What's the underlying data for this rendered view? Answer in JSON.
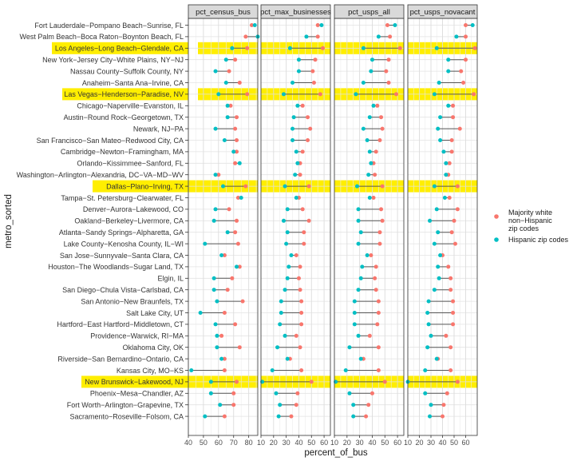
{
  "chart_data": {
    "type": "dumbbell",
    "xlabel": "percent_of_bus",
    "ylabel": "metro_sorted",
    "legend": {
      "placement": "right",
      "title": "",
      "items": [
        {
          "label": "Majority white non−Hispanic zip codes",
          "color": "#F8766D"
        },
        {
          "label": "Hispanic zip codes",
          "color": "#00BFC4"
        }
      ]
    },
    "highlight_color": "#FFEE00",
    "highlighted_metros": [
      "Los Angeles−Long Beach−Glendale, CA",
      "Las Vegas−Henderson−Paradise, NV",
      "Dallas−Plano−Irving, TX",
      "New Brunswick−Lakewood, NJ"
    ],
    "metros": [
      "Fort Lauderdale−Pompano Beach−Sunrise, FL",
      "West Palm Beach−Boca Raton−Boynton Beach, FL",
      "Los Angeles−Long Beach−Glendale, CA",
      "New York−Jersey City−White Plains, NY−NJ",
      "Nassau County−Suffolk County, NY",
      "Anaheim−Santa Ana−Irvine, CA",
      "Las Vegas−Henderson−Paradise, NV",
      "Chicago−Naperville−Evanston, IL",
      "Austin−Round Rock−Georgetown, TX",
      "Newark, NJ−PA",
      "San Francisco−San Mateo−Redwood City, CA",
      "Cambridge−Newton−Framingham, MA",
      "Orlando−Kissimmee−Sanford, FL",
      "Washington−Arlington−Alexandria, DC−VA−MD−WV",
      "Dallas−Plano−Irving, TX",
      "Tampa−St. Petersburg−Clearwater, FL",
      "Denver−Aurora−Lakewood, CO",
      "Oakland−Berkeley−Livermore, CA",
      "Atlanta−Sandy Springs−Alpharetta, GA",
      "Lake County−Kenosha County, IL−WI",
      "San Jose−Sunnyvale−Santa Clara, CA",
      "Houston−The Woodlands−Sugar Land, TX",
      "Elgin, IL",
      "San Diego−Chula Vista−Carlsbad, CA",
      "San Antonio−New Braunfels, TX",
      "Salt Lake City, UT",
      "Hartford−East Hartford−Middletown, CT",
      "Providence−Warwick, RI−MA",
      "Oklahoma City, OK",
      "Riverside−San Bernardino−Ontario, CA",
      "Kansas City, MO−KS",
      "New Brunswick−Lakewood, NJ",
      "Phoenix−Mesa−Chandler, AZ",
      "Fort Worth−Arlington−Grapevine, TX",
      "Sacramento−Roseville−Folsom, CA"
    ],
    "facets": [
      {
        "name": "pct_census_bus",
        "xlim": [
          40,
          86
        ],
        "ticks": [
          40,
          50,
          60,
          70,
          80
        ],
        "white": [
          82,
          78,
          79,
          71,
          67,
          74,
          79,
          68,
          72,
          71,
          72,
          72,
          71,
          60,
          78,
          73,
          67,
          72,
          71,
          73,
          64,
          74,
          69,
          66,
          76,
          64,
          71,
          62,
          74,
          64,
          64,
          72,
          70,
          70,
          64
        ],
        "hispanic": [
          84,
          86,
          69,
          65,
          58,
          65,
          60,
          66,
          66,
          58,
          64,
          70,
          74,
          58,
          63,
          75,
          58,
          57,
          66,
          51,
          62,
          72,
          57,
          57,
          59,
          48,
          58,
          59,
          59,
          62,
          42,
          55,
          55,
          61,
          51
        ]
      },
      {
        "name": "pct_max_businesses",
        "xlim": [
          10,
          65
        ],
        "ticks": [
          10,
          20,
          30,
          40,
          50,
          60
        ],
        "white": [
          55,
          55,
          59,
          53,
          51,
          52,
          57,
          43,
          47,
          49,
          47,
          43,
          41,
          41,
          48,
          40,
          43,
          48,
          44,
          44,
          38,
          41,
          40,
          41,
          42,
          42,
          42,
          38,
          41,
          33,
          42,
          50,
          39,
          38,
          34
        ],
        "hispanic": [
          58,
          46,
          33,
          40,
          40,
          35,
          28,
          39,
          36,
          35,
          35,
          38,
          39,
          37,
          29,
          38,
          31,
          28,
          31,
          30,
          34,
          32,
          31,
          29,
          26,
          26,
          25,
          29,
          23,
          31,
          19,
          11,
          22,
          25,
          24
        ]
      },
      {
        "name": "pct_usps_all",
        "xlim": [
          10,
          65
        ],
        "ticks": [
          10,
          20,
          30,
          40,
          50,
          60
        ],
        "white": [
          52,
          54,
          62,
          53,
          51,
          53,
          59,
          44,
          47,
          48,
          46,
          43,
          41,
          42,
          48,
          41,
          47,
          48,
          46,
          46,
          39,
          43,
          42,
          43,
          45,
          45,
          44,
          38,
          45,
          33,
          45,
          50,
          40,
          37,
          35
        ],
        "hispanic": [
          58,
          45,
          33,
          40,
          39,
          33,
          27,
          41,
          38,
          33,
          36,
          38,
          39,
          37,
          28,
          38,
          29,
          29,
          31,
          29,
          36,
          32,
          31,
          29,
          26,
          26,
          26,
          29,
          22,
          31,
          19,
          11,
          22,
          25,
          25
        ]
      },
      {
        "name": "pct_usps_novacant",
        "xlim": [
          10,
          70
        ],
        "ticks": [
          10,
          20,
          30,
          40,
          50,
          60
        ],
        "white": [
          60,
          60,
          68,
          60,
          56,
          58,
          67,
          49,
          49,
          55,
          48,
          48,
          46,
          45,
          53,
          46,
          53,
          50,
          48,
          51,
          40,
          45,
          47,
          47,
          49,
          49,
          49,
          43,
          47,
          36,
          47,
          53,
          44,
          41,
          40
        ],
        "hispanic": [
          66,
          52,
          35,
          45,
          45,
          37,
          33,
          45,
          38,
          36,
          38,
          41,
          43,
          43,
          33,
          42,
          35,
          29,
          36,
          33,
          38,
          36,
          37,
          33,
          28,
          27,
          28,
          30,
          27,
          35,
          25,
          10,
          25,
          30,
          29
        ]
      }
    ]
  }
}
